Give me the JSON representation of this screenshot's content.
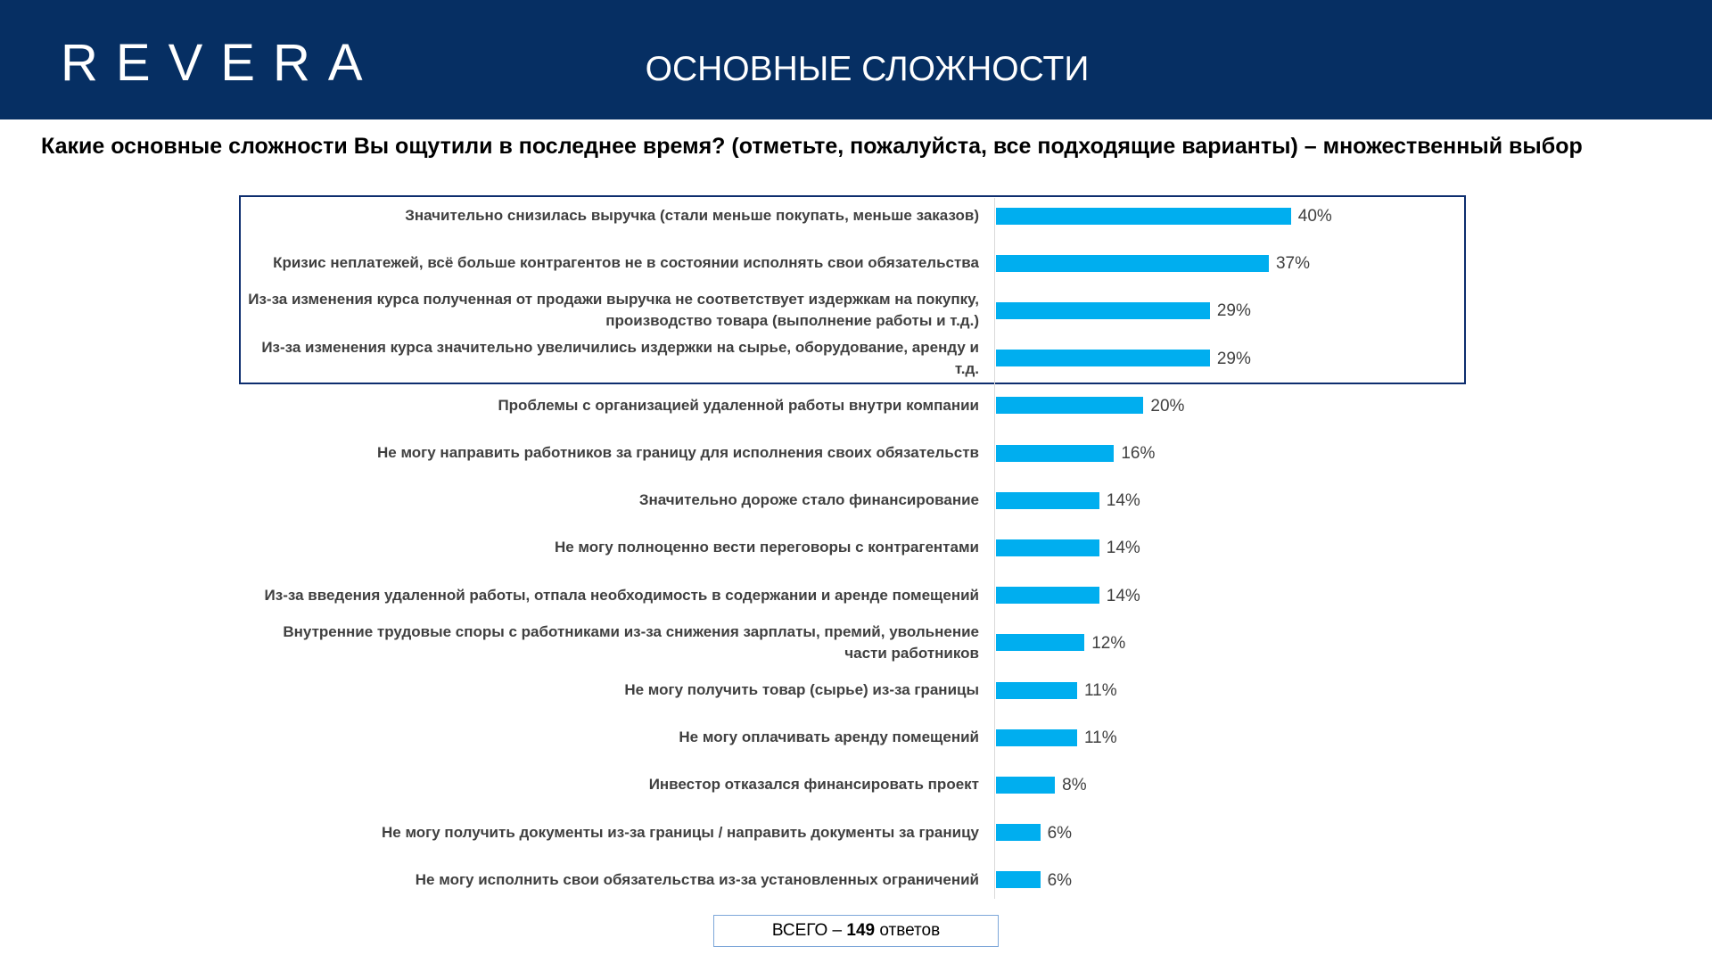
{
  "header": {
    "logo": "REVERA",
    "title": "ОСНОВНЫЕ СЛОЖНОСТИ"
  },
  "question": "Какие основные сложности Вы ощутили в последнее время? (отметьте, пожалуйста, все подходящие варианты) – множественный выбор",
  "total": {
    "prefix": "ВСЕГО – ",
    "count": "149",
    "suffix": " ответов"
  },
  "colors": {
    "header_bg": "#062f63",
    "bar": "#00aeef",
    "highlight_border": "#0d2d6e"
  },
  "chart_data": {
    "type": "bar",
    "orientation": "horizontal",
    "value_suffix": "%",
    "xlim": [
      0,
      100
    ],
    "grid": false,
    "highlighted_top_n": 4,
    "categories": [
      "Значительно снизилась выручка (стали меньше покупать, меньше заказов)",
      "Кризис неплатежей, всё больше контрагентов не в состоянии исполнять свои обязательства",
      "Из-за изменения курса полученная от продажи выручка не соответствует издержкам на покупку, производство товара (выполнение работы и т.д.)",
      "Из-за изменения курса значительно увеличились издержки на сырье, оборудование, аренду и т.д.",
      "Проблемы с организацией удаленной работы внутри компании",
      "Не могу направить работников за границу для исполнения своих обязательств",
      "Значительно дороже стало финансирование",
      "Не могу полноценно вести переговоры с контрагентами",
      "Из-за введения удаленной работы, отпала необходимость в содержании и аренде помещений",
      "Внутренние трудовые споры с работниками из-за снижения зарплаты, премий, увольнение части работников",
      "Не могу получить товар (сырье) из-за границы",
      "Не могу оплачивать аренду помещений",
      "Инвестор отказался финансировать проект",
      "Не могу получить документы из-за границы / направить документы за границу",
      "Не могу исполнить свои обязательства из-за установленных ограничений"
    ],
    "values": [
      40,
      37,
      29,
      29,
      20,
      16,
      14,
      14,
      14,
      12,
      11,
      11,
      8,
      6,
      6
    ]
  }
}
